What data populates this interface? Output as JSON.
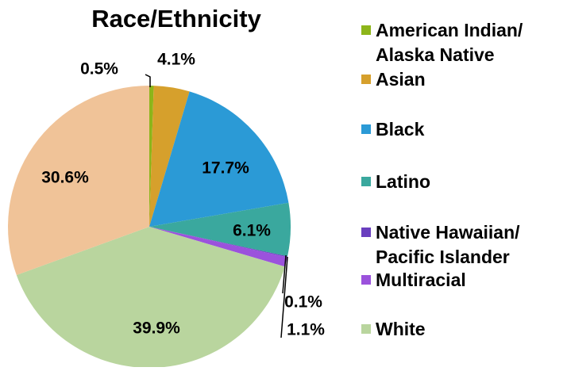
{
  "chart_data": {
    "type": "pie",
    "title": "Race/Ethnicity",
    "categories": [
      "American Indian/ Alaska Native",
      "Asian",
      "Black",
      "Latino",
      "Native Hawaiian/ Pacific Islander",
      "Multiracial",
      "White",
      null
    ],
    "values": [
      0.5,
      4.1,
      17.7,
      6.1,
      0.1,
      1.1,
      39.9,
      30.6
    ],
    "value_labels": [
      "0.5%",
      "4.1%",
      "17.7%",
      "6.1%",
      "0.1%",
      "1.1%",
      "39.9%",
      "30.6%"
    ],
    "colors": [
      "#8db51a",
      "#d6a02c",
      "#2b9ad6",
      "#3aa89e",
      "#6a3fbf",
      "#9b52dc",
      "#b9d59e",
      "#f0c398"
    ],
    "legend": "right"
  }
}
